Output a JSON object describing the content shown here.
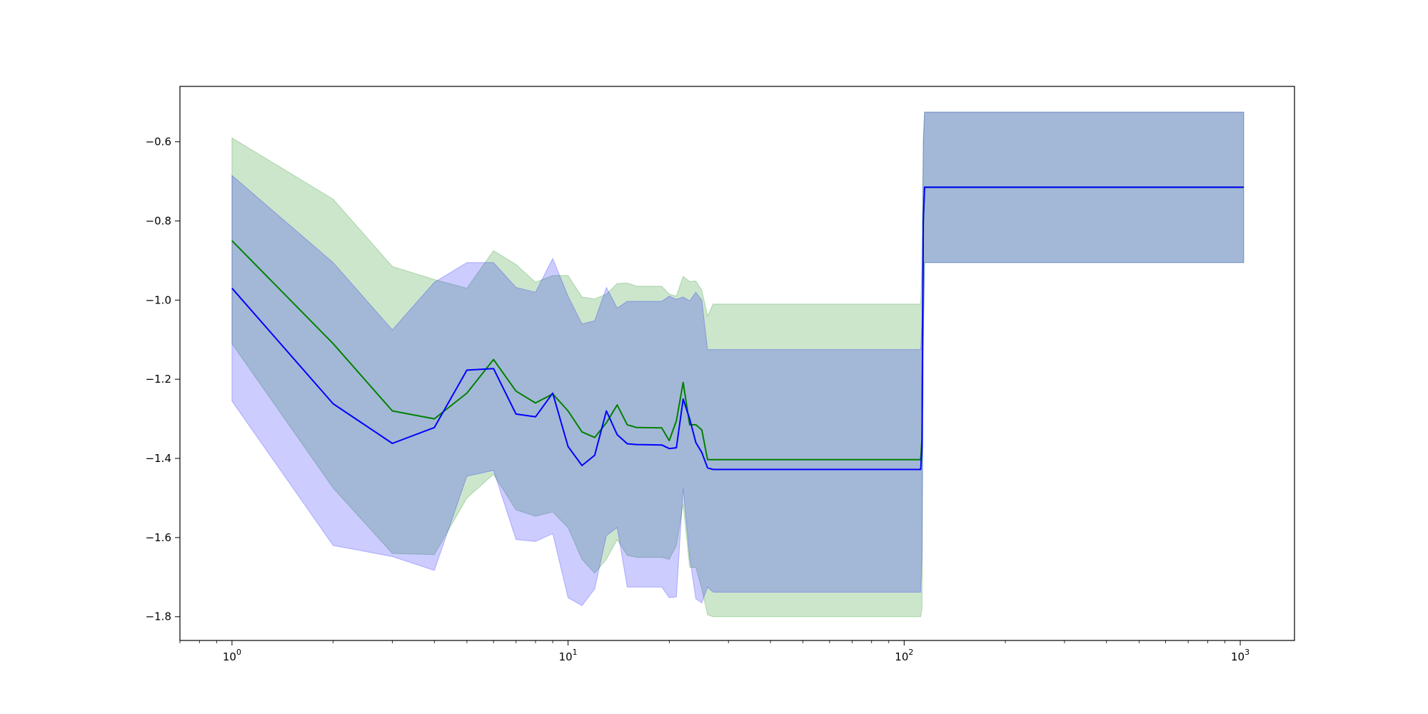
{
  "chart_data": {
    "type": "line",
    "title": "",
    "xlabel": "",
    "ylabel": "",
    "x_scale": "log",
    "xlim": [
      0.7,
      1450
    ],
    "ylim": [
      -1.86,
      -0.46
    ],
    "grid": false,
    "x_ticks": [
      {
        "value": 1,
        "base": "10",
        "exp": "0"
      },
      {
        "value": 10,
        "base": "10",
        "exp": "1"
      },
      {
        "value": 100,
        "base": "10",
        "exp": "2"
      },
      {
        "value": 1000,
        "base": "10",
        "exp": "3"
      }
    ],
    "y_ticks": [
      {
        "value": -0.6,
        "label": "−0.6"
      },
      {
        "value": -0.8,
        "label": "−0.8"
      },
      {
        "value": -1.0,
        "label": "−1.0"
      },
      {
        "value": -1.2,
        "label": "−1.2"
      },
      {
        "value": -1.4,
        "label": "−1.4"
      },
      {
        "value": -1.6,
        "label": "−1.6"
      },
      {
        "value": -1.8,
        "label": "−1.8"
      }
    ],
    "series": [
      {
        "color": "#008000",
        "band_color": "#008000",
        "band_opacity": 0.2,
        "x": [
          1,
          2,
          3,
          4,
          5,
          6,
          7,
          8,
          9,
          10,
          11,
          12,
          13,
          14,
          15,
          16,
          19,
          20,
          21,
          22,
          23,
          24,
          25,
          26,
          27,
          112,
          113,
          114,
          115,
          1024
        ],
        "y": [
          -0.85,
          -1.11,
          -1.28,
          -1.3,
          -1.235,
          -1.15,
          -1.23,
          -1.26,
          -1.237,
          -1.28,
          -1.333,
          -1.347,
          -1.31,
          -1.265,
          -1.315,
          -1.322,
          -1.323,
          -1.355,
          -1.305,
          -1.208,
          -1.315,
          -1.315,
          -1.328,
          -1.403,
          -1.403,
          -1.403,
          -1.35,
          -0.8,
          -0.715,
          -0.715
        ],
        "upper": [
          -0.59,
          -0.745,
          -0.915,
          -0.948,
          -0.97,
          -0.875,
          -0.91,
          -0.955,
          -0.938,
          -0.938,
          -0.992,
          -0.997,
          -0.985,
          -0.958,
          -0.957,
          -0.965,
          -0.965,
          -0.985,
          -0.99,
          -0.94,
          -0.953,
          -0.952,
          -0.975,
          -1.04,
          -1.01,
          -1.01,
          -0.9,
          -0.6,
          -0.525,
          -0.525
        ],
        "lower": [
          -1.11,
          -1.475,
          -1.64,
          -1.643,
          -1.5,
          -1.44,
          -1.53,
          -1.546,
          -1.535,
          -1.575,
          -1.655,
          -1.69,
          -1.655,
          -1.605,
          -1.645,
          -1.65,
          -1.65,
          -1.655,
          -1.62,
          -1.515,
          -1.675,
          -1.675,
          -1.73,
          -1.795,
          -1.8,
          -1.8,
          -1.78,
          -1.1,
          -0.905,
          -0.905
        ]
      },
      {
        "color": "#0000ff",
        "band_color": "#0000ff",
        "band_opacity": 0.2,
        "x": [
          1,
          2,
          3,
          4,
          5,
          6,
          7,
          8,
          9,
          10,
          11,
          12,
          13,
          14,
          15,
          16,
          19,
          20,
          21,
          22,
          23,
          24,
          25,
          26,
          27,
          112,
          113,
          114,
          115,
          1024
        ],
        "y": [
          -0.97,
          -1.262,
          -1.362,
          -1.322,
          -1.177,
          -1.173,
          -1.288,
          -1.295,
          -1.235,
          -1.37,
          -1.418,
          -1.392,
          -1.28,
          -1.34,
          -1.363,
          -1.365,
          -1.366,
          -1.375,
          -1.373,
          -1.25,
          -1.3,
          -1.36,
          -1.385,
          -1.424,
          -1.428,
          -1.428,
          -1.37,
          -0.8,
          -0.715,
          -0.715
        ],
        "upper": [
          -0.685,
          -0.905,
          -1.075,
          -0.955,
          -0.905,
          -0.905,
          -0.968,
          -0.98,
          -0.895,
          -0.99,
          -1.06,
          -1.052,
          -0.968,
          -1.02,
          -1.003,
          -1.003,
          -1.003,
          -0.99,
          -0.998,
          -0.992,
          -1.002,
          -0.98,
          -1.0,
          -1.125,
          -1.125,
          -1.125,
          -1.05,
          -0.6,
          -0.525,
          -0.525
        ],
        "lower": [
          -1.255,
          -1.62,
          -1.648,
          -1.683,
          -1.445,
          -1.43,
          -1.605,
          -1.61,
          -1.59,
          -1.752,
          -1.772,
          -1.73,
          -1.595,
          -1.575,
          -1.725,
          -1.725,
          -1.725,
          -1.752,
          -1.75,
          -1.475,
          -1.65,
          -1.755,
          -1.765,
          -1.725,
          -1.738,
          -1.738,
          -1.65,
          -1.1,
          -0.905,
          -0.905
        ]
      }
    ]
  }
}
